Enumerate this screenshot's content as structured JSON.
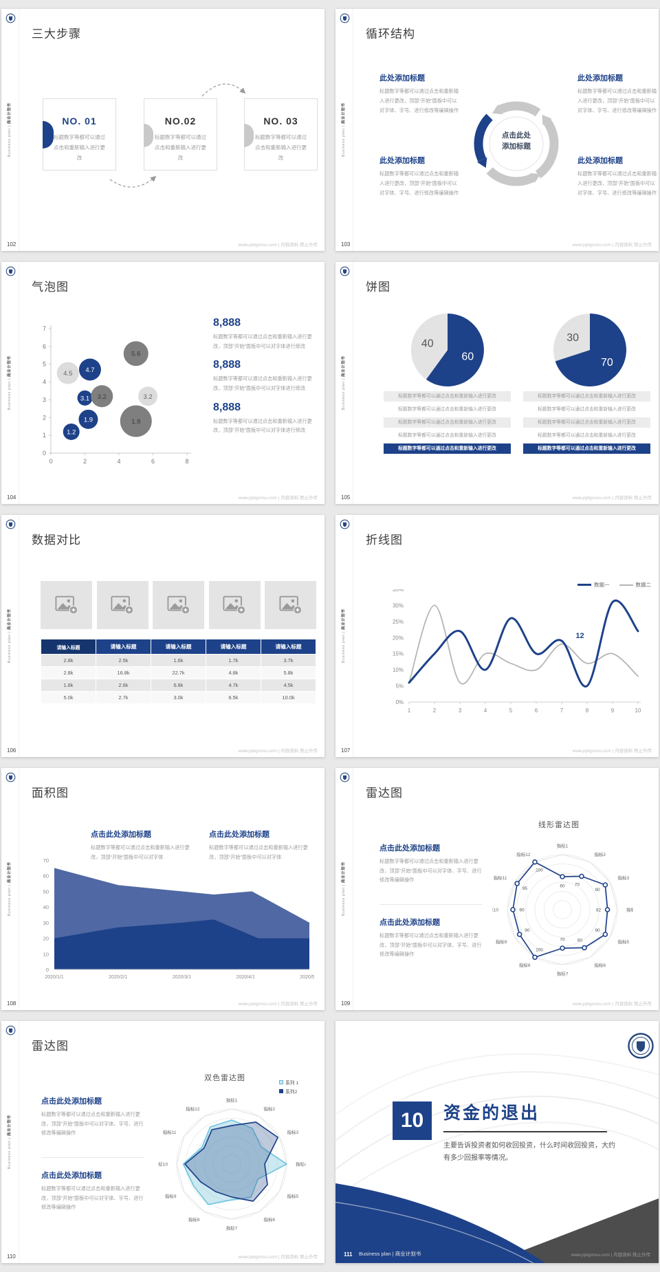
{
  "footer_url": "www.pptgonsu.com | 内容资料 禁止外传",
  "sidebar": {
    "en": "Business plan",
    "sep": " | ",
    "cn": "商业计划书"
  },
  "slides": {
    "steps": {
      "page": "102",
      "title": "三大步骤",
      "items": [
        {
          "no": "NO. 01",
          "body": "标题数字等都可以通过点击和重新输入进行更改"
        },
        {
          "no": "NO.02",
          "body": "标题数字等都可以通过点击和重新输入进行更改"
        },
        {
          "no": "NO. 03",
          "body": "标题数字等都可以通过点击和重新输入进行更改"
        }
      ]
    },
    "cycle": {
      "page": "103",
      "title": "循环结构",
      "center_line1": "点击此处",
      "center_line2": "添加标题",
      "blocks": [
        {
          "heading": "此处添加标题",
          "body": "标题数字等都可以通过点击和重新输入进行更改，顶部“开始”面板中可以对字体、字号、进行修改等编辑操作"
        },
        {
          "heading": "此处添加标题",
          "body": "标题数字等都可以通过点击和重新输入进行更改，顶部“开始”面板中可以对字体、字号、进行修改等编辑操作"
        },
        {
          "heading": "此处添加标题",
          "body": "标题数字等都可以通过点击和重新输入进行更改，顶部“开始”面板中可以对字体、字号、进行修改等编辑操作"
        },
        {
          "heading": "此处添加标题",
          "body": "标题数字等都可以通过点击和重新输入进行更改，顶部“开始”面板中可以对字体、字号、进行修改等编辑操作"
        }
      ]
    },
    "bubble": {
      "page": "104",
      "title": "气泡图",
      "stats": [
        {
          "value": "8,888",
          "body": "标题数字等都可以通过点击和重新输入进行更改，顶部“开始”面板中可以对字体进行修改"
        },
        {
          "value": "8,888",
          "body": "标题数字等都可以通过点击和重新输入进行更改，顶部“开始”面板中可以对字体进行修改"
        },
        {
          "value": "8,888",
          "body": "标题数字等都可以通过点击和重新输入进行更改，顶部“开始”面板中可以对字体进行修改"
        }
      ]
    },
    "pie": {
      "page": "105",
      "title": "饼图",
      "caption_rows": [
        "标题数字等都可以通过点击和重新输入进行更改",
        "标题数字等都可以通过点击和重新输入进行更改",
        "标题数字等都可以通过点击和重新输入进行更改",
        "标题数字等都可以通过点击和重新输入进行更改",
        "标题数字等都可以通过点击和重新输入进行更改"
      ]
    },
    "compare": {
      "page": "106",
      "title": "数据对比",
      "headers": [
        "请输入标题",
        "请输入标题",
        "请输入标题",
        "请输入标题",
        "请输入标题"
      ],
      "rows": [
        [
          "2.8k",
          "2.5k",
          "1.6k",
          "1.7k",
          "3.7k"
        ],
        [
          "2.8k",
          "16.8k",
          "22.7k",
          "4.8k",
          "5.8k"
        ],
        [
          "1.6k",
          "2.6k",
          "6.8k",
          "4.7k",
          "4.5k"
        ],
        [
          "5.0k",
          "2.7k",
          "3.0k",
          "6.5k",
          "10.0k"
        ]
      ]
    },
    "line": {
      "page": "107",
      "title": "折线图",
      "legend": [
        "数据一",
        "数据二"
      ],
      "annotation": "12"
    },
    "area": {
      "page": "108",
      "title": "面积图",
      "blocks": [
        {
          "heading": "点击此处添加标题",
          "body": "标题数字等都可以通过点击和重新输入进行更改，顶部“开始”面板中可以对字体"
        },
        {
          "heading": "点击此处添加标题",
          "body": "标题数字等都可以通过点击和重新输入进行更改，顶部“开始”面板中可以对字体"
        }
      ]
    },
    "radar1": {
      "page": "109",
      "title": "雷达图",
      "chart_title": "线形雷达图",
      "blocks": [
        {
          "heading": "点击此处添加标题",
          "body": "标题数字等都可以通过点击和重新输入进行更改，顶部“开始”面板中可以对字体、字号、进行修改等编辑操作"
        },
        {
          "heading": "点击此处添加标题",
          "body": "标题数字等都可以通过点击和重新输入进行更改，顶部“开始”面板中可以对字体、字号、进行修改等编辑操作"
        }
      ]
    },
    "radar2": {
      "page": "110",
      "title": "雷达图",
      "chart_title": "双色雷达图",
      "legend": [
        "系列 1",
        "系列2"
      ],
      "blocks": [
        {
          "heading": "点击此处添加标题",
          "body": "标题数字等都可以通过点击和重新输入进行更改，顶部“开始”面板中可以对字体、字号、进行修改等编辑操作"
        },
        {
          "heading": "点击此处添加标题",
          "body": "标题数字等都可以通过点击和重新输入进行更改，顶部“开始”面板中可以对字体、字号、进行修改等编辑操作"
        }
      ]
    },
    "cover": {
      "page": "111",
      "number": "10",
      "title": "资金的退出",
      "body": "主要告诉投资者如何收回投资，什么时间收回投资，大约有多少回报率等情况。",
      "footer_label": "Business plan | 商业计划书"
    }
  },
  "chart_data": [
    {
      "name": "bubble",
      "type": "scatter",
      "xlim": [
        0,
        8
      ],
      "ylim": [
        0,
        7
      ],
      "xticks": [
        0,
        2,
        4,
        6,
        8
      ],
      "yticks": [
        0,
        1,
        2,
        3,
        4,
        5,
        6,
        7
      ],
      "points": [
        {
          "x": 1.0,
          "y": 4.5,
          "label": "4.5",
          "r": 16,
          "color": "light"
        },
        {
          "x": 2.3,
          "y": 4.7,
          "label": "4.7",
          "r": 16,
          "color": "blue"
        },
        {
          "x": 5.0,
          "y": 5.6,
          "label": "5.6",
          "r": 18,
          "color": "dark"
        },
        {
          "x": 2.0,
          "y": 3.1,
          "label": "3.1",
          "r": 11,
          "color": "blue"
        },
        {
          "x": 3.0,
          "y": 3.2,
          "label": "3.2",
          "r": 16,
          "color": "dark"
        },
        {
          "x": 5.7,
          "y": 3.2,
          "label": "3.2",
          "r": 14,
          "color": "light"
        },
        {
          "x": 2.2,
          "y": 1.9,
          "label": "1.9",
          "r": 14,
          "color": "blue"
        },
        {
          "x": 1.2,
          "y": 1.2,
          "label": "1.2",
          "r": 12,
          "color": "blue"
        },
        {
          "x": 5.0,
          "y": 1.8,
          "label": "1.8",
          "r": 23,
          "color": "dark"
        }
      ]
    },
    {
      "name": "pie-left",
      "type": "pie",
      "values": [
        60,
        40
      ],
      "labels": [
        "60",
        "40"
      ],
      "colors": [
        "#1e4289",
        "#e3e3e3"
      ]
    },
    {
      "name": "pie-right",
      "type": "pie",
      "values": [
        70,
        30
      ],
      "labels": [
        "70",
        "30"
      ],
      "colors": [
        "#1e4289",
        "#e3e3e3"
      ]
    },
    {
      "name": "line",
      "type": "line",
      "x": [
        1,
        2,
        3,
        4,
        5,
        6,
        7,
        8,
        9,
        10
      ],
      "ylim": [
        0,
        35
      ],
      "yticks": [
        "0%",
        "5%",
        "10%",
        "15%",
        "20%",
        "25%",
        "30%",
        "35%"
      ],
      "series": [
        {
          "name": "数据一",
          "color": "#1e4289",
          "width": 3,
          "values": [
            6,
            15,
            22,
            10,
            26,
            15,
            19,
            5,
            31,
            22
          ]
        },
        {
          "name": "数据二",
          "color": "#b5b5b5",
          "width": 1.8,
          "values": [
            6,
            30,
            6,
            15,
            12,
            10,
            18,
            12,
            15,
            8
          ]
        }
      ],
      "annotation": {
        "text": "12",
        "x": 7.55,
        "y": 19
      }
    },
    {
      "name": "area",
      "type": "area",
      "ylim": [
        0,
        70
      ],
      "yticks": [
        0,
        10,
        20,
        30,
        40,
        50,
        60,
        70
      ],
      "xlabels": [
        "2020/1/1",
        "2020/2/1",
        "2020/3/1",
        "2020/4/1",
        "2020/5/1"
      ],
      "series": [
        {
          "name": "upper",
          "color": "#5068a3",
          "points": [
            [
              0,
              65
            ],
            [
              1,
              54
            ],
            [
              2,
              50
            ],
            [
              2.5,
              48
            ],
            [
              3.1,
              50
            ],
            [
              4,
              30
            ]
          ]
        },
        {
          "name": "lower",
          "color": "#1e4289",
          "points": [
            [
              0,
              20
            ],
            [
              1,
              27
            ],
            [
              2,
              30
            ],
            [
              2.5,
              32
            ],
            [
              3.2,
              20
            ],
            [
              4,
              20
            ]
          ]
        }
      ]
    },
    {
      "name": "radar-line",
      "type": "radar",
      "title": "线形雷达图",
      "max": 100,
      "axes": [
        "指标1",
        "指标2",
        "指标3",
        "指标4",
        "指标5",
        "指标6",
        "指标7",
        "指标8",
        "指标9",
        "指标10",
        "指标11",
        "指标12"
      ],
      "series": [
        {
          "name": "数据",
          "color": "#1e4289",
          "fill": "none",
          "markers": true,
          "show_labels": true,
          "values": [
            60,
            70,
            90,
            82,
            90,
            80,
            70,
            100,
            90,
            90,
            95,
            100
          ]
        }
      ]
    },
    {
      "name": "radar-dual",
      "type": "radar",
      "title": "双色雷达图",
      "max": 100,
      "axes": [
        "指标1",
        "指标2",
        "指标3",
        "指标4",
        "指标5",
        "指标6",
        "指标7",
        "指标8",
        "指标9",
        "指标10",
        "指标11",
        "指标12"
      ],
      "legend": [
        "系列 1",
        "系列2"
      ],
      "series": [
        {
          "name": "系列 1",
          "color": "#6fc6dc",
          "fill": "rgba(141,205,223,0.45)",
          "markers": false,
          "show_labels": false,
          "values": [
            80,
            75,
            62,
            100,
            55,
            70,
            65,
            85,
            80,
            88,
            62,
            78
          ]
        },
        {
          "name": "系列2",
          "color": "#1e4289",
          "fill": "rgba(70,100,155,0.35)",
          "markers": false,
          "show_labels": false,
          "values": [
            70,
            88,
            97,
            60,
            75,
            78,
            60,
            58,
            65,
            85,
            58,
            72
          ]
        }
      ]
    }
  ]
}
